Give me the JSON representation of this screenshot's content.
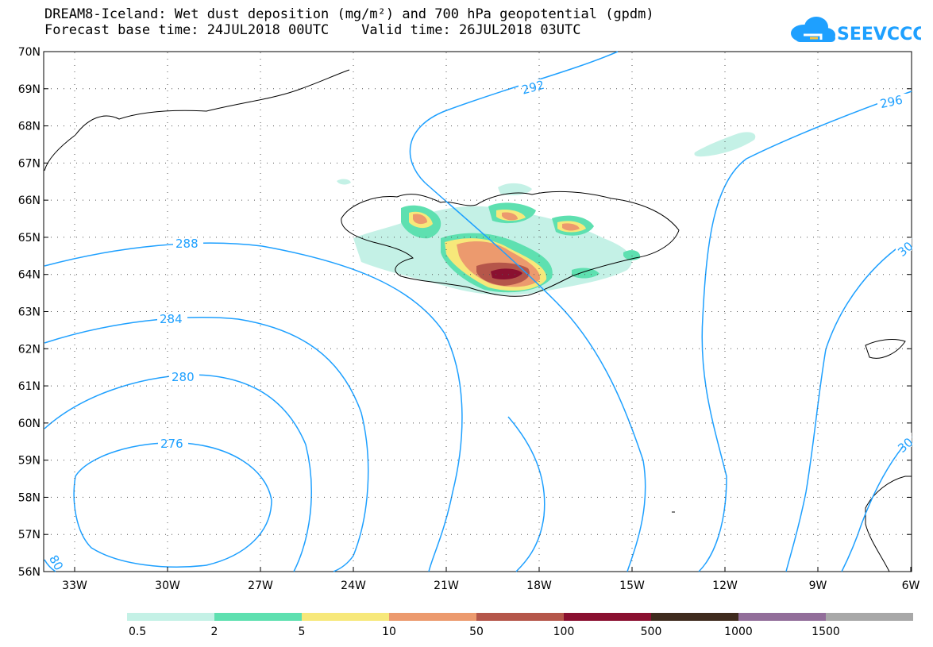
{
  "header": {
    "title_line1": "DREAM8-Iceland: Wet dust deposition (mg/m²) and 700 hPa geopotential (gpdm)",
    "title_line2": "Forecast base time: 24JUL2018 00UTC    Valid time: 26JUL2018 03UTC",
    "logo_text": "SEEVCCC"
  },
  "map": {
    "lat_labels": [
      "70N",
      "69N",
      "68N",
      "67N",
      "66N",
      "65N",
      "64N",
      "63N",
      "62N",
      "61N",
      "60N",
      "59N",
      "58N",
      "57N",
      "56N"
    ],
    "lon_labels": [
      "33W",
      "30W",
      "27W",
      "24W",
      "21W",
      "18W",
      "15W",
      "12W",
      "9W",
      "6W"
    ],
    "contour_labels": [
      "292",
      "296",
      "288",
      "284",
      "280",
      "276",
      "30",
      "30",
      "80"
    ],
    "contour_color": "#1ea0ff"
  },
  "legend": {
    "labels": [
      "0.5",
      "2",
      "5",
      "10",
      "50",
      "100",
      "500",
      "1000",
      "1500"
    ],
    "colors": [
      "#c4f1e6",
      "#5ee0b0",
      "#f7e87a",
      "#ec9a6e",
      "#b5564a",
      "#8a1030",
      "#3f2b1e",
      "#926e9a",
      "#a8a8a8"
    ]
  }
}
